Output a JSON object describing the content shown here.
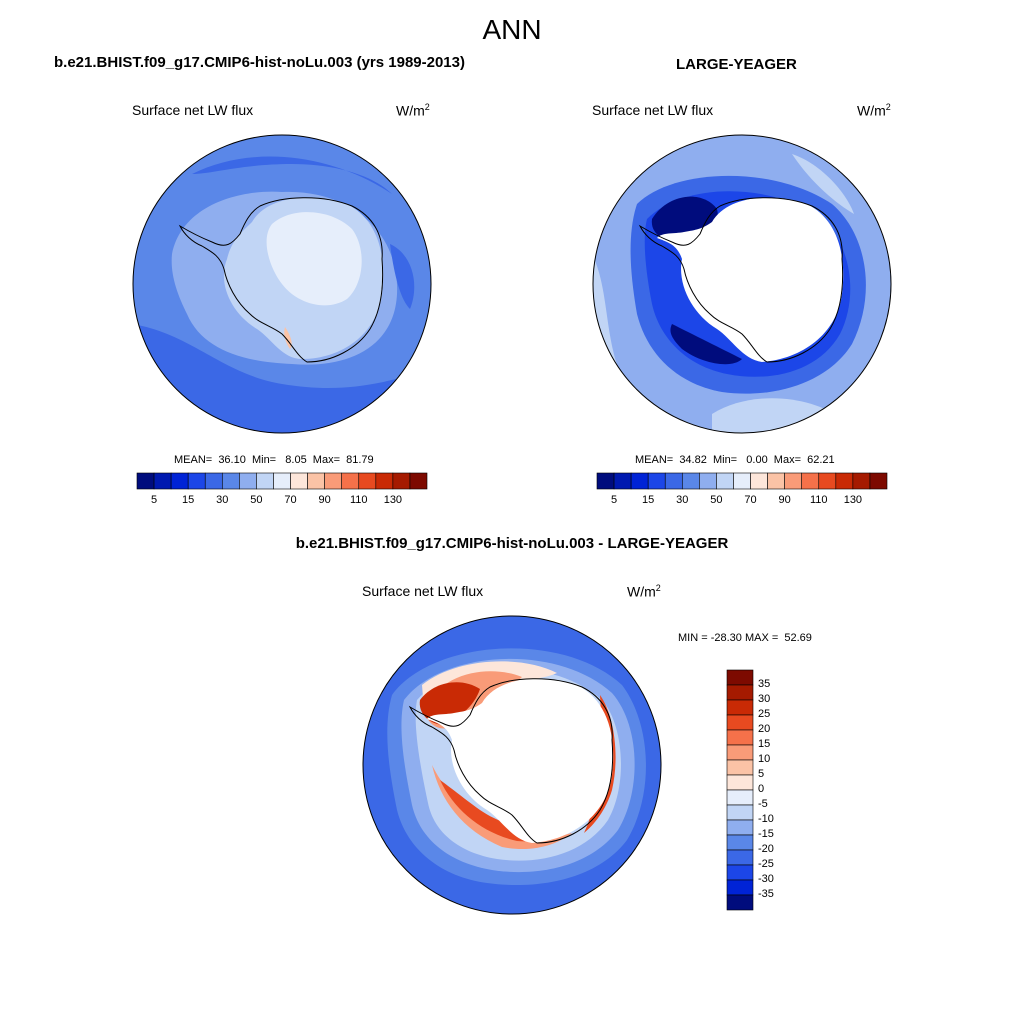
{
  "figure": {
    "title": "ANN"
  },
  "panels": [
    {
      "id": "model",
      "title": "b.e21.BHIST.f09_g17.CMIP6-hist-noLu.003 (yrs 1989-2013)",
      "variable": "Surface net LW flux",
      "units_base": "W/m",
      "units_exp": "2",
      "stats": "MEAN=  36.10  Min=   8.05  Max=  81.79",
      "colorbar": {
        "tick_labels": [
          "5",
          "15",
          "30",
          "50",
          "70",
          "90",
          "110",
          "130"
        ],
        "colors": [
          "#000c7d",
          "#0019b0",
          "#0023d6",
          "#1c46e8",
          "#3b68e6",
          "#5a87e8",
          "#8faeef",
          "#c1d5f5",
          "#e6eefb",
          "#fde6da",
          "#fbc3a6",
          "#f99b78",
          "#f5714a",
          "#e84a20",
          "#c92a05",
          "#a51a00",
          "#7d0a00"
        ]
      }
    },
    {
      "id": "obs",
      "title": "LARGE-YEAGER",
      "variable": "Surface net LW flux",
      "units_base": "W/m",
      "units_exp": "2",
      "stats": "MEAN=  34.82  Min=   0.00  Max=  62.21",
      "colorbar": {
        "tick_labels": [
          "5",
          "15",
          "30",
          "50",
          "70",
          "90",
          "110",
          "130"
        ],
        "colors": [
          "#000c7d",
          "#0019b0",
          "#0023d6",
          "#1c46e8",
          "#3b68e6",
          "#5a87e8",
          "#8faeef",
          "#c1d5f5",
          "#e6eefb",
          "#fde6da",
          "#fbc3a6",
          "#f99b78",
          "#f5714a",
          "#e84a20",
          "#c92a05",
          "#a51a00",
          "#7d0a00"
        ]
      }
    },
    {
      "id": "diff",
      "title": "b.e21.BHIST.f09_g17.CMIP6-hist-noLu.003 - LARGE-YEAGER",
      "variable": "Surface net LW flux",
      "units_base": "W/m",
      "units_exp": "2",
      "stats": "MIN = -28.30 MAX =  52.69",
      "colorbar": {
        "tick_labels": [
          "35",
          "30",
          "25",
          "20",
          "15",
          "10",
          "5",
          "0",
          "-5",
          "-10",
          "-15",
          "-20",
          "-25",
          "-30",
          "-35"
        ],
        "colors": [
          "#7d0a00",
          "#a51a00",
          "#c92a05",
          "#e84a20",
          "#f5714a",
          "#f99b78",
          "#fbc3a6",
          "#fde6da",
          "#e6eefb",
          "#c1d5f5",
          "#8faeef",
          "#5a87e8",
          "#3b68e6",
          "#1c46e8",
          "#0023d6",
          "#000c7d"
        ]
      }
    }
  ],
  "map_colors": {
    "land_mask": "#ffffff",
    "coastline": "#000000",
    "model_background": "#5a87e8",
    "model_outer_dark": "#3b68e6",
    "model_inner_light": "#8faeef",
    "model_continent": "#c1d5f5",
    "model_continent_pale": "#e6eefb",
    "obs_background": "#8faeef",
    "obs_pale": "#c1d5f5",
    "obs_ring": "#3b68e6",
    "obs_ring_dark": "#1c46e8",
    "obs_deep": "#000c7d",
    "diff_background": "#3b68e6",
    "diff_mid": "#5a87e8",
    "diff_light": "#8faeef",
    "diff_pale": "#c1d5f5",
    "diff_warm_pale": "#fde6da",
    "diff_warm": "#f99b78",
    "diff_hot": "#e84a20",
    "diff_hotter": "#c92a05"
  }
}
